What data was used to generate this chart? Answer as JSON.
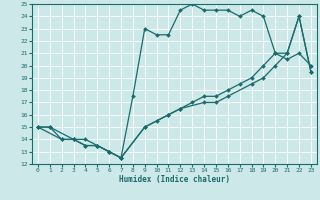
{
  "xlabel": "Humidex (Indice chaleur)",
  "ylabel": "",
  "xlim": [
    -0.5,
    23.5
  ],
  "ylim": [
    12,
    25
  ],
  "xticks": [
    0,
    1,
    2,
    3,
    4,
    5,
    6,
    7,
    8,
    9,
    10,
    11,
    12,
    13,
    14,
    15,
    16,
    17,
    18,
    19,
    20,
    21,
    22,
    23
  ],
  "yticks": [
    12,
    13,
    14,
    15,
    16,
    17,
    18,
    19,
    20,
    21,
    22,
    23,
    24,
    25
  ],
  "bg_color": "#cce8e8",
  "grid_color": "#ffffff",
  "line_color": "#1a6b6b",
  "line1_x": [
    0,
    1,
    2,
    3,
    4,
    5,
    6,
    7,
    9,
    11,
    12,
    14,
    15,
    16,
    18,
    19,
    20,
    21,
    22,
    23
  ],
  "line1_y": [
    15.0,
    15.0,
    14.0,
    14.0,
    13.5,
    13.5,
    13.0,
    12.5,
    15.0,
    16.0,
    16.5,
    17.0,
    17.0,
    17.5,
    18.5,
    19.0,
    20.0,
    21.0,
    24.0,
    19.5
  ],
  "line2_x": [
    0,
    2,
    3,
    4,
    5,
    6,
    7,
    8,
    9,
    10,
    11,
    12,
    13,
    14,
    15,
    16,
    17,
    18,
    19,
    20,
    21,
    22,
    23
  ],
  "line2_y": [
    15.0,
    14.0,
    14.0,
    13.5,
    13.5,
    13.0,
    12.5,
    17.5,
    23.0,
    22.5,
    22.5,
    24.5,
    25.0,
    24.5,
    24.5,
    24.5,
    24.0,
    24.5,
    24.0,
    21.0,
    20.5,
    21.0,
    20.0
  ],
  "line3_x": [
    0,
    1,
    3,
    4,
    5,
    6,
    7,
    9,
    10,
    11,
    12,
    13,
    14,
    15,
    16,
    17,
    18,
    19,
    20,
    21,
    22,
    23
  ],
  "line3_y": [
    15.0,
    15.0,
    14.0,
    14.0,
    13.5,
    13.0,
    12.5,
    15.0,
    15.5,
    16.0,
    16.5,
    17.0,
    17.5,
    17.5,
    18.0,
    18.5,
    19.0,
    20.0,
    21.0,
    21.0,
    24.0,
    19.5
  ]
}
